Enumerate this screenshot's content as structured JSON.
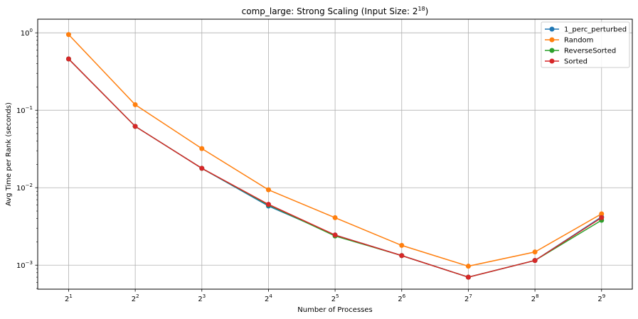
{
  "chart_data": {
    "type": "line",
    "title": "comp_large: Strong Scaling (Input Size: 2",
    "title_exponent": "18",
    "title_suffix": ")",
    "xlabel": "Number of Processes",
    "ylabel": "Avg Time per Rank (seconds)",
    "x_scale": "log2",
    "y_scale": "log10",
    "grid": true,
    "legend_position": "top-right",
    "x": [
      2,
      4,
      8,
      16,
      32,
      64,
      128,
      256,
      512
    ],
    "x_tick_base": "2",
    "x_tick_exponents": [
      "1",
      "2",
      "3",
      "4",
      "5",
      "6",
      "7",
      "8",
      "9"
    ],
    "y_tick_base": "10",
    "y_tick_exponents": [
      "0",
      "−1",
      "−2",
      "−3"
    ],
    "y_tick_values": [
      1,
      0.1,
      0.01,
      0.001
    ],
    "ylim": [
      0.00049,
      1.5
    ],
    "xlim": [
      1.45,
      705
    ],
    "series": [
      {
        "name": "1_perc_perturbed",
        "color": "#1f77b4",
        "values": [
          0.46,
          0.062,
          0.0178,
          0.0058,
          0.00245,
          0.00133,
          0.0007,
          0.00115,
          0.0042
        ]
      },
      {
        "name": "Random",
        "color": "#ff7f0e",
        "values": [
          0.95,
          0.118,
          0.032,
          0.0094,
          0.0041,
          0.0018,
          0.00097,
          0.00148,
          0.0046
        ]
      },
      {
        "name": "ReverseSorted",
        "color": "#2ca02c",
        "values": [
          0.46,
          0.062,
          0.0178,
          0.006,
          0.00238,
          0.00133,
          0.0007,
          0.00115,
          0.0038
        ]
      },
      {
        "name": "Sorted",
        "color": "#d62728",
        "values": [
          0.46,
          0.062,
          0.0178,
          0.0061,
          0.00245,
          0.00133,
          0.0007,
          0.00115,
          0.0041
        ]
      }
    ]
  }
}
